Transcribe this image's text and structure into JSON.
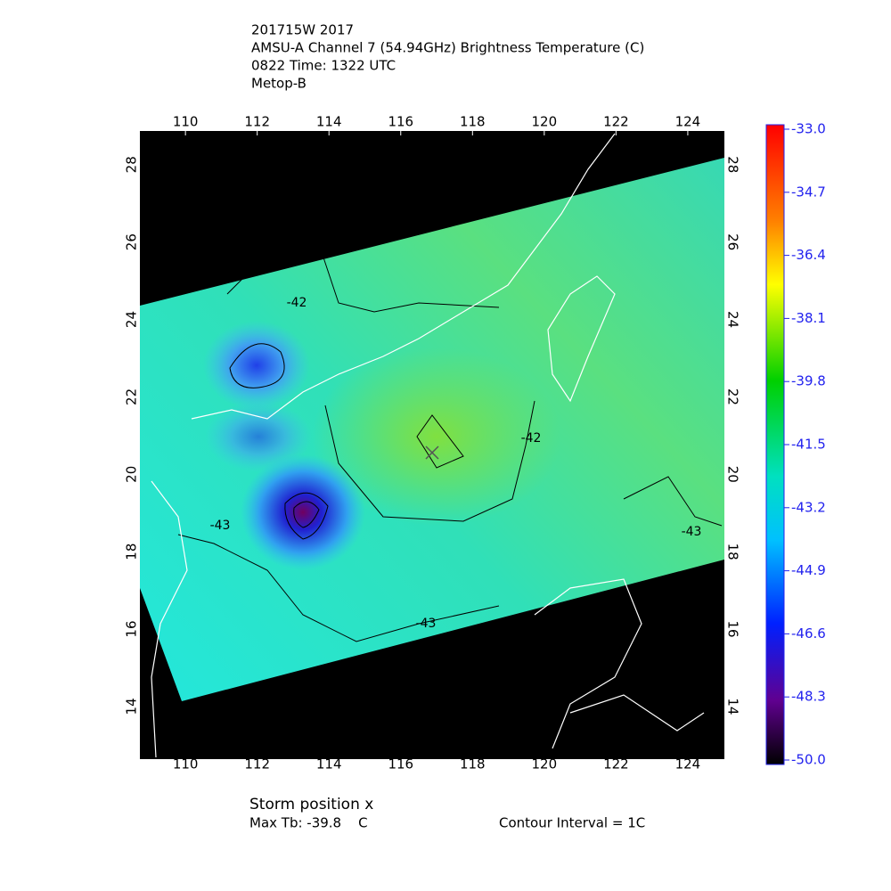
{
  "map": {
    "title_lines": [
      "201715W 2017",
      "AMSU-A Channel 7 (54.94GHz) Brightness Temperature (C)",
      "0822 Time: 1322 UTC",
      "Metop-B"
    ],
    "lon_lim": [
      108.73,
      125.02
    ],
    "lat_lim": [
      12.64,
      28.87
    ],
    "lon_ticks": [
      110,
      112,
      114,
      116,
      118,
      120,
      122,
      124
    ],
    "lat_ticks": [
      14,
      16,
      18,
      20,
      22,
      24,
      26,
      28
    ],
    "grid": true,
    "contour_labels": [
      "-42",
      "-42",
      "-43",
      "-43",
      "-43"
    ],
    "colorbar": {
      "lim": [
        -50,
        -33
      ],
      "ticks": [
        {
          "value": -33,
          "label": "-33.0"
        },
        {
          "value": -34.7,
          "label": "-34.7"
        },
        {
          "value": -36.4,
          "label": "-36.4"
        },
        {
          "value": -38.1,
          "label": "-38.1"
        },
        {
          "value": -39.8,
          "label": "-39.8"
        },
        {
          "value": -41.5,
          "label": "-41.5"
        },
        {
          "value": -43.2,
          "label": "-43.2"
        },
        {
          "value": -44.9,
          "label": "-44.9"
        },
        {
          "value": -46.6,
          "label": "-46.6"
        },
        {
          "value": -48.3,
          "label": "-48.3"
        },
        {
          "value": -50,
          "label": "-50.0"
        }
      ]
    },
    "footer": {
      "storm": "Storm position x",
      "max_tb": "Max Tb: -39.8    C",
      "interval": "Contour Interval = 1C"
    }
  }
}
